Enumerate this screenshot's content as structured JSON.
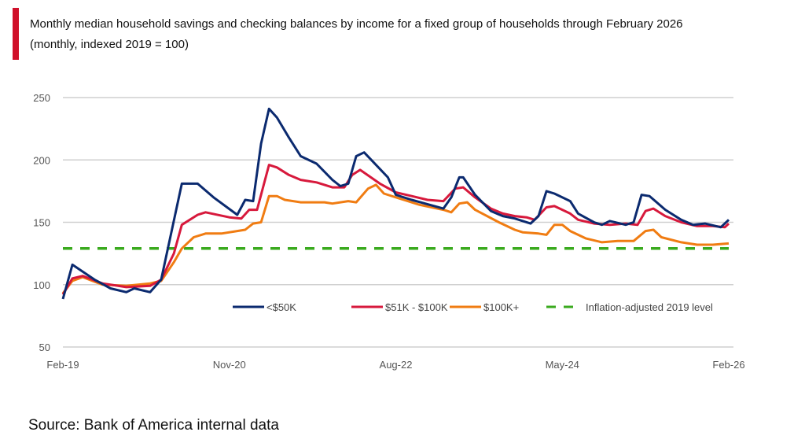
{
  "chart_data": {
    "type": "line",
    "title": "Monthly median household savings and checking balances by income for a fixed group of households through February 2026",
    "subtitle": "(monthly, indexed 2019 = 100)",
    "xlabel": "",
    "ylabel": "",
    "x_unit": "months since Feb-19",
    "xlim": [
      0,
      84
    ],
    "ylim": [
      50,
      250
    ],
    "yticks": [
      "50",
      "100",
      "150",
      "200",
      "250"
    ],
    "xticks": [
      {
        "m": 0,
        "label": "Feb-19"
      },
      {
        "m": 21,
        "label": "Nov-20"
      },
      {
        "m": 42,
        "label": "Aug-22"
      },
      {
        "m": 63,
        "label": "May-24"
      },
      {
        "m": 84,
        "label": "Feb-26"
      }
    ],
    "grid": true,
    "legend_position": "bottom-inside",
    "series": [
      {
        "name": "<$50K",
        "color": "#0b2a6f",
        "dashed": false,
        "points": [
          [
            0,
            88.5
          ],
          [
            1.2,
            116
          ],
          [
            4,
            104
          ],
          [
            6,
            97
          ],
          [
            8,
            94
          ],
          [
            9,
            97
          ],
          [
            11,
            94
          ],
          [
            12.4,
            104
          ],
          [
            15,
            181
          ],
          [
            17,
            181
          ],
          [
            19,
            170
          ],
          [
            22,
            156
          ],
          [
            23,
            168
          ],
          [
            24,
            167
          ],
          [
            25,
            213
          ],
          [
            26,
            241
          ],
          [
            27,
            234
          ],
          [
            28.5,
            218
          ],
          [
            30,
            203
          ],
          [
            32,
            197
          ],
          [
            34,
            184
          ],
          [
            35,
            179
          ],
          [
            36,
            181
          ],
          [
            37,
            203
          ],
          [
            38,
            206
          ],
          [
            41,
            186
          ],
          [
            42,
            172
          ],
          [
            44,
            168
          ],
          [
            48,
            161
          ],
          [
            49,
            170
          ],
          [
            50,
            186
          ],
          [
            50.5,
            186
          ],
          [
            52,
            172
          ],
          [
            54,
            159
          ],
          [
            55.5,
            155
          ],
          [
            57,
            153
          ],
          [
            59,
            149
          ],
          [
            60,
            155
          ],
          [
            61,
            175
          ],
          [
            62,
            173
          ],
          [
            64,
            167
          ],
          [
            65,
            157
          ],
          [
            67,
            150
          ],
          [
            68,
            148
          ],
          [
            69,
            151
          ],
          [
            71,
            148
          ],
          [
            72,
            150
          ],
          [
            73,
            172
          ],
          [
            74,
            171
          ],
          [
            76,
            160
          ],
          [
            78,
            152
          ],
          [
            79.5,
            148
          ],
          [
            81,
            149
          ],
          [
            83,
            146
          ],
          [
            84,
            152
          ]
        ]
      },
      {
        "name": "$51K - $100K",
        "color": "#d7193c",
        "dashed": false,
        "points": [
          [
            0,
            92
          ],
          [
            1.2,
            105
          ],
          [
            2.5,
            107
          ],
          [
            5,
            101
          ],
          [
            8,
            98
          ],
          [
            11,
            99
          ],
          [
            12.4,
            104
          ],
          [
            14,
            125
          ],
          [
            15,
            148
          ],
          [
            17,
            156
          ],
          [
            18,
            158
          ],
          [
            21,
            154
          ],
          [
            22.5,
            153
          ],
          [
            23.5,
            160
          ],
          [
            24.5,
            160
          ],
          [
            26,
            196
          ],
          [
            27,
            194
          ],
          [
            28.5,
            188
          ],
          [
            30,
            184
          ],
          [
            32,
            182
          ],
          [
            34,
            178
          ],
          [
            35.5,
            178
          ],
          [
            36.5,
            188
          ],
          [
            37.5,
            192
          ],
          [
            40,
            181
          ],
          [
            42,
            174
          ],
          [
            44,
            171
          ],
          [
            46,
            168
          ],
          [
            48,
            167
          ],
          [
            49.5,
            177
          ],
          [
            50.5,
            178
          ],
          [
            52,
            170
          ],
          [
            54,
            161
          ],
          [
            55.5,
            157
          ],
          [
            57,
            155
          ],
          [
            58.5,
            154
          ],
          [
            59.5,
            152
          ],
          [
            61,
            162
          ],
          [
            62,
            163
          ],
          [
            64,
            157
          ],
          [
            65,
            152
          ],
          [
            67,
            149
          ],
          [
            69,
            148
          ],
          [
            71,
            149
          ],
          [
            72.5,
            148
          ],
          [
            73.5,
            159
          ],
          [
            74.5,
            161
          ],
          [
            76,
            155
          ],
          [
            78,
            150
          ],
          [
            80,
            147
          ],
          [
            82,
            147
          ],
          [
            83.5,
            146
          ],
          [
            84,
            149
          ]
        ]
      },
      {
        "name": "$100K+",
        "color": "#f07c12",
        "dashed": false,
        "points": [
          [
            0,
            93
          ],
          [
            1.2,
            103
          ],
          [
            2.5,
            106
          ],
          [
            5,
            100
          ],
          [
            8,
            99
          ],
          [
            11,
            101
          ],
          [
            12.4,
            103
          ],
          [
            14,
            118
          ],
          [
            15,
            129
          ],
          [
            16.5,
            138
          ],
          [
            18,
            141
          ],
          [
            20,
            141
          ],
          [
            22,
            143
          ],
          [
            23,
            144
          ],
          [
            24,
            149
          ],
          [
            25,
            150
          ],
          [
            26,
            171
          ],
          [
            27,
            171
          ],
          [
            28,
            168
          ],
          [
            30,
            166
          ],
          [
            33,
            166
          ],
          [
            34,
            165
          ],
          [
            36,
            167
          ],
          [
            37,
            166
          ],
          [
            38.5,
            177
          ],
          [
            39.5,
            180
          ],
          [
            40.5,
            173
          ],
          [
            43,
            168
          ],
          [
            45,
            164
          ],
          [
            48,
            160
          ],
          [
            49,
            158
          ],
          [
            50,
            165
          ],
          [
            51,
            166
          ],
          [
            52,
            160
          ],
          [
            55,
            150
          ],
          [
            57,
            144
          ],
          [
            58,
            142
          ],
          [
            60,
            141
          ],
          [
            61,
            140
          ],
          [
            62,
            148
          ],
          [
            63,
            148
          ],
          [
            64,
            143
          ],
          [
            66,
            137
          ],
          [
            68,
            134
          ],
          [
            70,
            135
          ],
          [
            72,
            135
          ],
          [
            73.5,
            143
          ],
          [
            74.5,
            144
          ],
          [
            75.5,
            138
          ],
          [
            78,
            134
          ],
          [
            80,
            132
          ],
          [
            82,
            132
          ],
          [
            84,
            133
          ]
        ]
      },
      {
        "name": "Inflation-adjusted 2019 level",
        "color": "#3aaa1e",
        "dashed": true,
        "points": [
          [
            0,
            129
          ],
          [
            84,
            129
          ]
        ]
      }
    ]
  },
  "source": "Source: Bank of America internal data"
}
